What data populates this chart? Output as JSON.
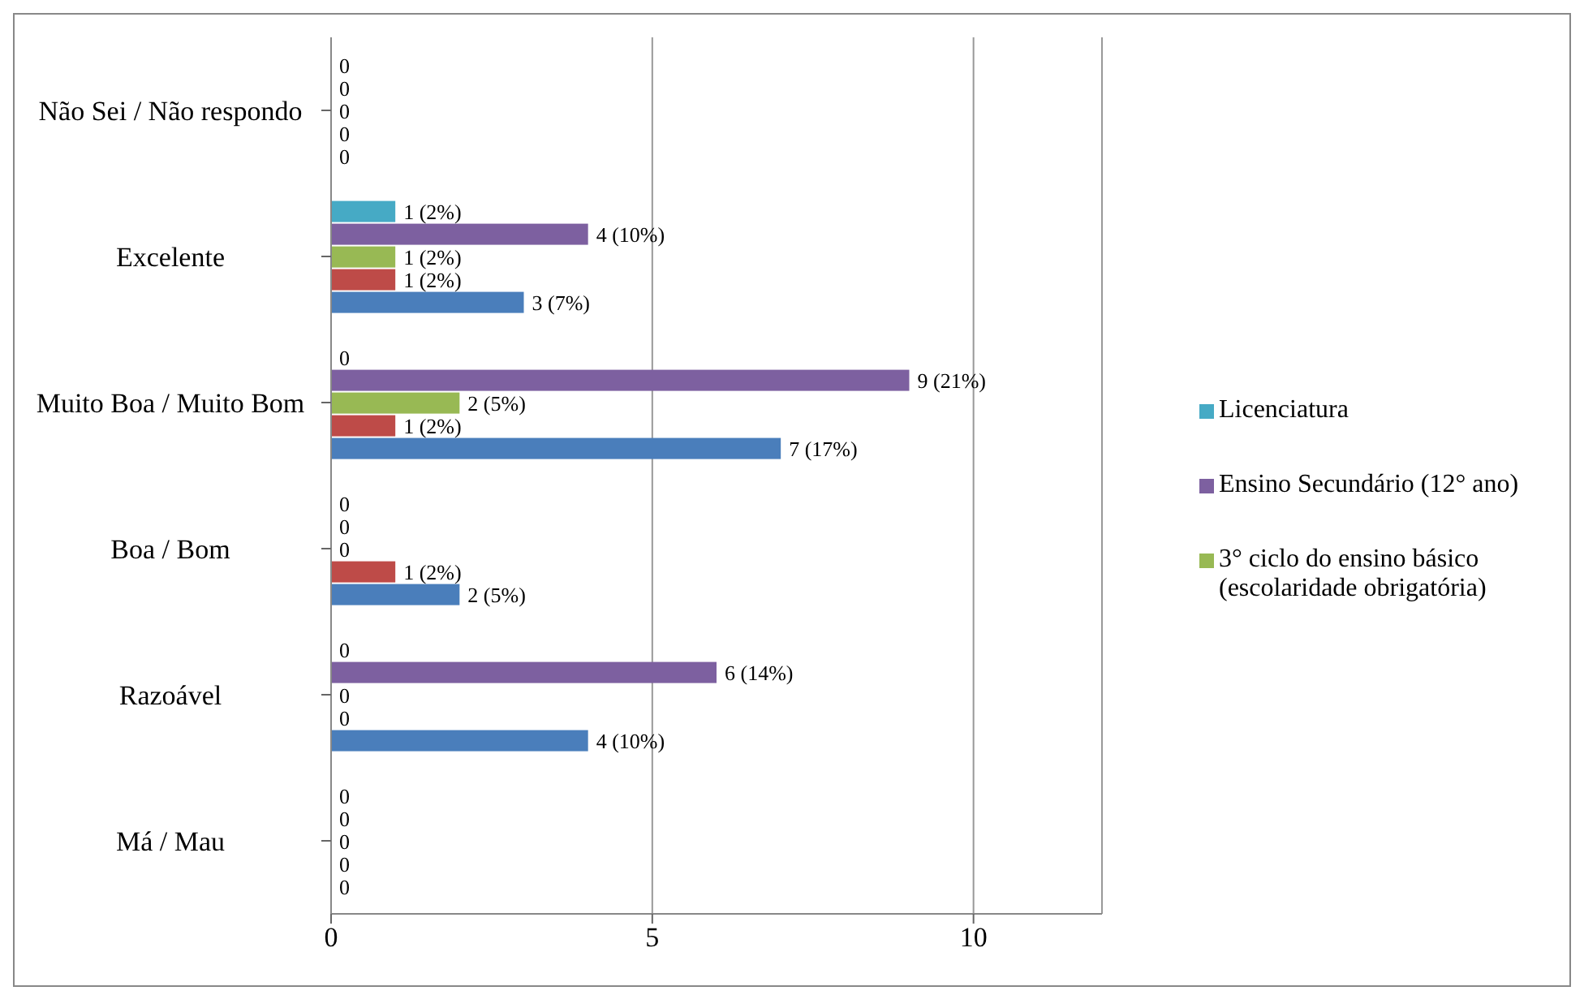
{
  "chart_data": {
    "type": "bar",
    "orientation": "horizontal",
    "categories": [
      "Não Sei / Não respondo",
      "Excelente",
      "Muito Boa / Muito Bom",
      "Boa / Bom",
      "Razoável",
      "Má / Mau"
    ],
    "series": [
      {
        "name": "Licenciatura",
        "color": "#46aac5",
        "values": [
          0,
          1,
          0,
          0,
          0,
          0
        ],
        "value_labels": [
          "0",
          "1 (2%)",
          "0",
          "0",
          "0",
          "0"
        ]
      },
      {
        "name": "Ensino Secundário (12° ano)",
        "color": "#7d60a0",
        "values": [
          0,
          4,
          9,
          0,
          6,
          0
        ],
        "value_labels": [
          "0",
          "4 (10%)",
          "9 (21%)",
          "0",
          "6 (14%)",
          "0"
        ]
      },
      {
        "name": "3° ciclo do ensino básico (escolaridade obrigatória)",
        "color": "#98b954",
        "values": [
          0,
          1,
          2,
          0,
          0,
          0
        ],
        "value_labels": [
          "0",
          "1 (2%)",
          "2 (5%)",
          "0",
          "0",
          "0"
        ]
      },
      {
        "color": "#be4b48",
        "values": [
          0,
          1,
          1,
          1,
          0,
          0
        ],
        "value_labels": [
          "0",
          "1 (2%)",
          "1 (2%)",
          "1 (2%)",
          "0",
          "0"
        ]
      },
      {
        "color": "#4a7ebb",
        "values": [
          0,
          3,
          7,
          2,
          4,
          0
        ],
        "value_labels": [
          "0",
          "3 (7%)",
          "7 (17%)",
          "2 (5%)",
          "4 (10%)",
          "0"
        ]
      }
    ],
    "xlim": [
      0,
      12
    ],
    "xticks": [
      0,
      5,
      10
    ],
    "grid": "x",
    "legend": "right"
  }
}
